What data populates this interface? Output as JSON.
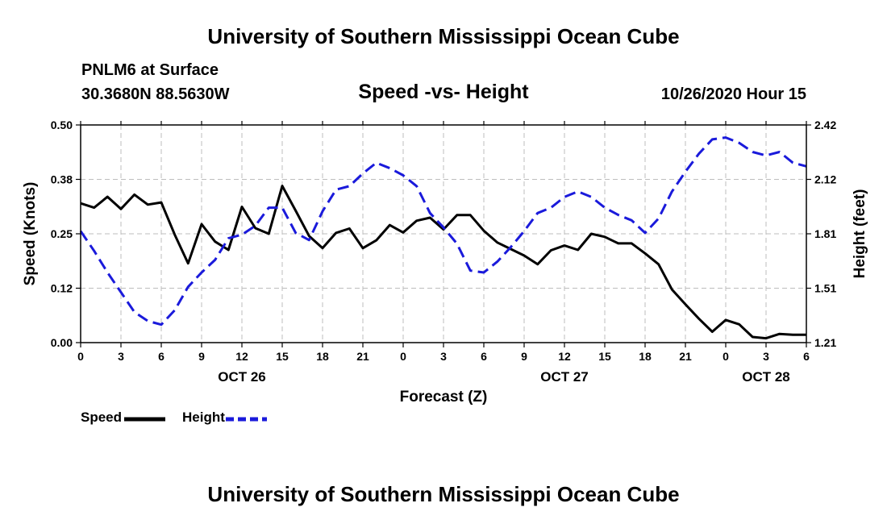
{
  "page": {
    "top_title": "University of Southern Mississippi Ocean Cube",
    "bottom_title": "University of Southern Mississippi Ocean Cube",
    "station": "PNLM6 at Surface",
    "location": "30.3680N 88.5630W",
    "datetime": "10/26/2020 Hour 15"
  },
  "chart_data": {
    "type": "line",
    "title": "Speed -vs- Height",
    "xlabel": "Forecast (Z)",
    "ylabel": "Speed (Knots)",
    "y2label": "Height (feet)",
    "xlim": [
      0,
      54
    ],
    "ylim": [
      0.0,
      0.5
    ],
    "y2lim": [
      1.21,
      2.42
    ],
    "grid": true,
    "x_ticks": [
      0,
      3,
      6,
      9,
      12,
      15,
      18,
      21,
      24,
      27,
      30,
      33,
      36,
      39,
      42,
      45,
      48,
      51,
      54
    ],
    "x_tick_labels": [
      "0",
      "3",
      "6",
      "9",
      "12",
      "15",
      "18",
      "21",
      "0",
      "3",
      "6",
      "9",
      "12",
      "15",
      "18",
      "21",
      "0",
      "3",
      "6"
    ],
    "y_ticks": [
      0.0,
      0.125,
      0.25,
      0.375,
      0.5
    ],
    "y_tick_labels": [
      "0.00",
      "0.12",
      "0.25",
      "0.38",
      "0.50"
    ],
    "y2_ticks": [
      1.21,
      1.5125,
      1.815,
      2.1175,
      2.42
    ],
    "y2_tick_labels": [
      "1.21",
      "1.51",
      "1.81",
      "2.12",
      "2.42"
    ],
    "date_labels": [
      {
        "x": 12,
        "label": "OCT 26"
      },
      {
        "x": 36,
        "label": "OCT 27"
      },
      {
        "x": 51,
        "label": "OCT 28"
      }
    ],
    "series": [
      {
        "name": "Speed",
        "axis": "left",
        "color": "#000000",
        "style": "solid",
        "x": [
          0,
          1,
          2,
          3,
          4,
          5,
          6,
          7,
          8,
          9,
          10,
          11,
          12,
          13,
          14,
          15,
          16,
          17,
          18,
          19,
          20,
          21,
          22,
          23,
          24,
          25,
          26,
          27,
          28,
          29,
          30,
          31,
          32,
          33,
          34,
          35,
          36,
          37,
          38,
          39,
          40,
          41,
          42,
          43,
          44,
          45,
          46,
          47,
          48,
          49,
          50,
          51,
          52,
          53,
          54
        ],
        "values": [
          0.32,
          0.31,
          0.335,
          0.307,
          0.34,
          0.317,
          0.322,
          0.248,
          0.182,
          0.272,
          0.232,
          0.213,
          0.312,
          0.263,
          0.25,
          0.36,
          0.303,
          0.245,
          0.217,
          0.252,
          0.262,
          0.217,
          0.235,
          0.27,
          0.253,
          0.28,
          0.287,
          0.26,
          0.293,
          0.293,
          0.257,
          0.23,
          0.215,
          0.2,
          0.18,
          0.212,
          0.223,
          0.213,
          0.25,
          0.243,
          0.228,
          0.228,
          0.205,
          0.18,
          0.122,
          0.088,
          0.055,
          0.025,
          0.052,
          0.042,
          0.013,
          0.01,
          0.02,
          0.018,
          0.018
        ]
      },
      {
        "name": "Height",
        "axis": "right",
        "color": "#1a1adb",
        "style": "dashed",
        "x": [
          0,
          1,
          2,
          3,
          4,
          5,
          6,
          7,
          8,
          9,
          10,
          11,
          12,
          13,
          14,
          15,
          16,
          17,
          18,
          19,
          20,
          21,
          22,
          23,
          24,
          25,
          26,
          27,
          28,
          29,
          30,
          31,
          32,
          33,
          34,
          35,
          36,
          37,
          38,
          39,
          40,
          41,
          42,
          43,
          44,
          45,
          46,
          47,
          48,
          49,
          50,
          51,
          52,
          53,
          54
        ],
        "values": [
          1.83,
          1.72,
          1.6,
          1.49,
          1.38,
          1.33,
          1.31,
          1.39,
          1.52,
          1.6,
          1.67,
          1.79,
          1.81,
          1.86,
          1.96,
          1.96,
          1.82,
          1.78,
          1.94,
          2.06,
          2.08,
          2.15,
          2.21,
          2.18,
          2.14,
          2.08,
          1.93,
          1.85,
          1.76,
          1.61,
          1.6,
          1.66,
          1.74,
          1.83,
          1.93,
          1.96,
          2.02,
          2.05,
          2.02,
          1.96,
          1.92,
          1.89,
          1.82,
          1.9,
          2.05,
          2.16,
          2.26,
          2.34,
          2.35,
          2.32,
          2.27,
          2.25,
          2.27,
          2.21,
          2.19
        ]
      }
    ]
  },
  "legend": {
    "speed_label": "Speed",
    "height_label": "Height",
    "speed_color": "#000000",
    "height_color": "#1a1adb"
  }
}
